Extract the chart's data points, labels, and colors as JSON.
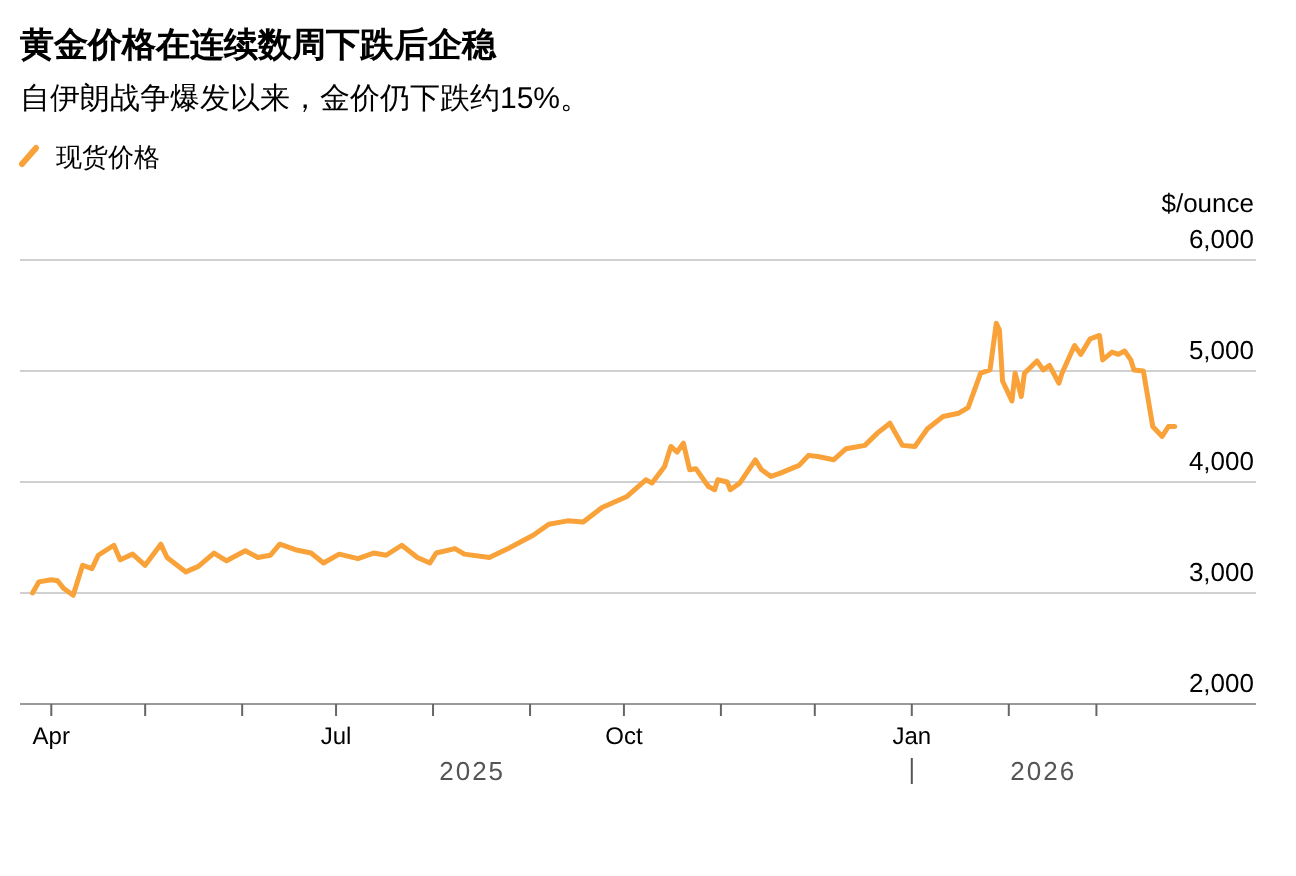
{
  "chart_data": {
    "type": "line",
    "title": "黄金价格在连续数周下跌后企稳",
    "subtitle": "自伊朗战争爆发以来，金价仍下跌约15%。",
    "ylabel": "$/ounce",
    "legend": "top left",
    "grid": "y",
    "marker": "none",
    "line_style": "solid",
    "x": [
      "2025-03-26",
      "2025-03-28",
      "2025-04-01",
      "2025-04-03",
      "2025-04-05",
      "2025-04-08",
      "2025-04-11",
      "2025-04-14",
      "2025-04-16",
      "2025-04-21",
      "2025-04-23",
      "2025-04-27",
      "2025-05-01",
      "2025-05-06",
      "2025-05-08",
      "2025-05-14",
      "2025-05-18",
      "2025-05-23",
      "2025-05-27",
      "2025-06-02",
      "2025-06-06",
      "2025-06-10",
      "2025-06-13",
      "2025-06-18",
      "2025-06-23",
      "2025-06-27",
      "2025-07-02",
      "2025-07-08",
      "2025-07-13",
      "2025-07-17",
      "2025-07-22",
      "2025-07-27",
      "2025-07-31",
      "2025-08-02",
      "2025-08-08",
      "2025-08-11",
      "2025-08-19",
      "2025-08-25",
      "2025-09-02",
      "2025-09-07",
      "2025-09-13",
      "2025-09-18",
      "2025-09-24",
      "2025-10-02",
      "2025-10-08",
      "2025-10-10",
      "2025-10-14",
      "2025-10-16",
      "2025-10-18",
      "2025-10-20",
      "2025-10-22",
      "2025-10-24",
      "2025-10-28",
      "2025-10-30",
      "2025-10-31",
      "2025-11-03",
      "2025-11-04",
      "2025-11-07",
      "2025-11-12",
      "2025-11-14",
      "2025-11-17",
      "2025-11-20",
      "2025-11-26",
      "2025-11-29",
      "2025-12-02",
      "2025-12-07",
      "2025-12-11",
      "2025-12-17",
      "2025-12-21",
      "2025-12-25",
      "2025-12-29",
      "2026-01-02",
      "2026-01-06",
      "2026-01-11",
      "2026-01-16",
      "2026-01-19",
      "2026-01-23",
      "2026-01-26",
      "2026-01-28",
      "2026-01-29",
      "2026-01-30",
      "2026-02-02",
      "2026-02-03",
      "2026-02-05",
      "2026-02-06",
      "2026-02-10",
      "2026-02-12",
      "2026-02-14",
      "2026-02-17",
      "2026-02-18",
      "2026-02-22",
      "2026-02-24",
      "2026-02-27",
      "2026-03-02",
      "2026-03-03",
      "2026-03-06",
      "2026-03-08",
      "2026-03-10",
      "2026-03-12",
      "2026-03-13",
      "2026-03-16",
      "2026-03-19",
      "2026-03-22",
      "2026-03-24",
      "2026-03-26"
    ],
    "series": [
      {
        "name": "现货价格",
        "color": "#f9a23a",
        "values": [
          3000,
          3100,
          3120,
          3110,
          3040,
          2980,
          3250,
          3220,
          3340,
          3430,
          3300,
          3350,
          3250,
          3440,
          3320,
          3190,
          3240,
          3360,
          3290,
          3380,
          3320,
          3340,
          3440,
          3390,
          3360,
          3270,
          3350,
          3310,
          3360,
          3340,
          3430,
          3320,
          3270,
          3360,
          3400,
          3350,
          3320,
          3400,
          3520,
          3620,
          3650,
          3640,
          3770,
          3870,
          4020,
          3990,
          4140,
          4320,
          4270,
          4350,
          4110,
          4120,
          3960,
          3930,
          4020,
          4000,
          3930,
          3990,
          4200,
          4110,
          4050,
          4080,
          4150,
          4240,
          4230,
          4200,
          4300,
          4330,
          4440,
          4530,
          4330,
          4320,
          4480,
          4590,
          4620,
          4670,
          4980,
          5010,
          5430,
          5370,
          4910,
          4730,
          4980,
          4770,
          4980,
          5090,
          5010,
          5050,
          4890,
          4980,
          5230,
          5150,
          5290,
          5320,
          5100,
          5170,
          5150,
          5180,
          5100,
          5010,
          5000,
          4500,
          4410,
          4500,
          4500
        ]
      }
    ],
    "xlim": [
      "2025-03-22",
      "2026-04-21"
    ],
    "xticks": [
      {
        "value": "2025-04-01",
        "label": "Apr"
      },
      {
        "value": "2025-05-01",
        "label": null
      },
      {
        "value": "2025-06-01",
        "label": null
      },
      {
        "value": "2025-07-01",
        "label": "Jul"
      },
      {
        "value": "2025-08-01",
        "label": null
      },
      {
        "value": "2025-09-01",
        "label": null
      },
      {
        "value": "2025-10-01",
        "label": "Oct"
      },
      {
        "value": "2025-11-01",
        "label": null
      },
      {
        "value": "2025-12-01",
        "label": null
      },
      {
        "value": "2026-01-01",
        "label": "Jan"
      },
      {
        "value": "2026-02-01",
        "label": null
      },
      {
        "value": "2026-03-01",
        "label": null
      }
    ],
    "ylim": [
      2000,
      6000
    ],
    "yticks": [
      {
        "value": 2000,
        "label": "2,000"
      },
      {
        "value": 3000,
        "label": "3,000"
      },
      {
        "value": 4000,
        "label": "4,000"
      },
      {
        "value": 5000,
        "label": "5,000"
      },
      {
        "value": 6000,
        "label": "6,000"
      }
    ],
    "annotations": [
      "2025",
      "2026"
    ]
  }
}
